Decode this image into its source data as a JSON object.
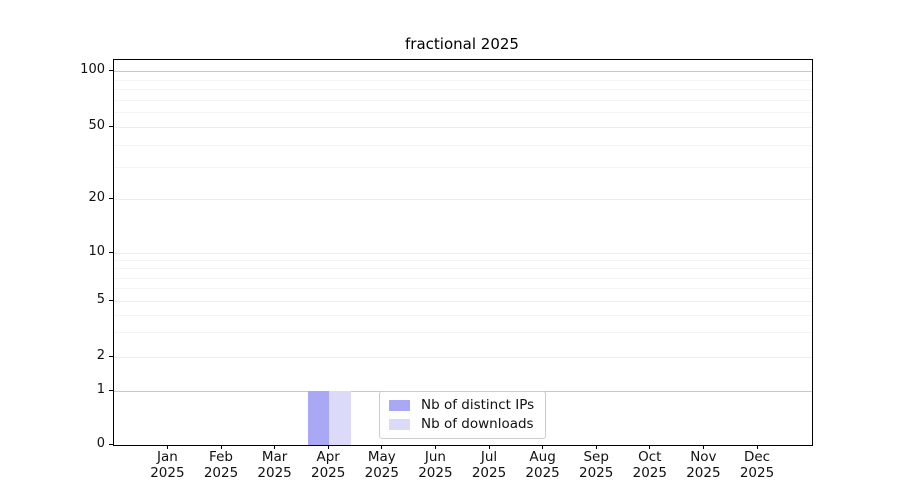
{
  "title": "fractional 2025",
  "chart_data": {
    "type": "bar",
    "title": "fractional 2025",
    "x_tick_months": [
      "Jan",
      "Feb",
      "Mar",
      "Apr",
      "May",
      "Jun",
      "Jul",
      "Aug",
      "Sep",
      "Oct",
      "Nov",
      "Dec"
    ],
    "x_tick_year": "2025",
    "categories": [
      "Jan 2025",
      "Feb 2025",
      "Mar 2025",
      "Apr 2025",
      "May 2025",
      "Jun 2025",
      "Jul 2025",
      "Aug 2025",
      "Sep 2025",
      "Oct 2025",
      "Nov 2025",
      "Dec 2025"
    ],
    "series": [
      {
        "name": "Nb of distinct IPs",
        "color": "#a8a8f5",
        "values": [
          0,
          0,
          0,
          1,
          0,
          0,
          0,
          0,
          0,
          0,
          0,
          0
        ]
      },
      {
        "name": "Nb of downloads",
        "color": "#dbdbf9",
        "values": [
          0,
          0,
          0,
          1,
          0,
          0,
          0,
          0,
          0,
          0,
          0,
          0
        ]
      }
    ],
    "y_ticks": [
      0,
      1,
      2,
      5,
      10,
      20,
      50,
      100
    ],
    "y_tick_labels": [
      "0",
      "1",
      "2",
      "5",
      "10",
      "20",
      "50",
      "100"
    ],
    "y_minor_ticks": [
      3,
      4,
      6,
      7,
      8,
      9,
      30,
      40,
      60,
      70,
      80,
      90
    ],
    "y_scale": "symlog-like (linear 0-1, log above)",
    "ylim": [
      0,
      110
    ],
    "grid": true,
    "legend_position": "inside axes, lower center"
  },
  "colors": {
    "background": "#ffffff",
    "spine": "#000000",
    "grid_emphasis": "#c9c9c9",
    "grid_major": "#ededed",
    "grid_minor": "#f4f4f4",
    "tick_text": "#111111"
  }
}
